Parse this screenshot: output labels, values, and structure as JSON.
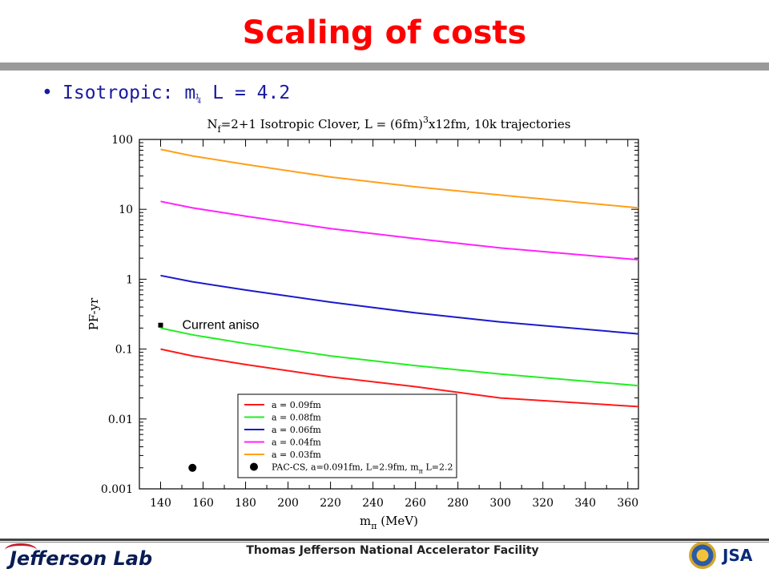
{
  "slide": {
    "title": "Scaling of costs",
    "bullet_prefix": "Isotropic: m",
    "bullet_sub": "¼",
    "bullet_suffix": " L = 4.2"
  },
  "footer": {
    "left_logo": "Jefferson Lab",
    "center_text": "Thomas Jefferson National Accelerator Facility",
    "right_logo": "JSA"
  },
  "colors": {
    "title": "#ff0000",
    "bullet": "#1a1aa0"
  },
  "chart_data": {
    "type": "line",
    "title_parts": [
      "N",
      "f",
      "=2+1 Isotropic Clover, L = (6fm)",
      "3",
      "x12fm, 10k trajectories"
    ],
    "xlabel_main": "m",
    "xlabel_sub": "π",
    "xlabel_unit": " (MeV)",
    "ylabel": "PF-yr",
    "xlim": [
      130,
      365
    ],
    "ylim": [
      0.001,
      100
    ],
    "yscale": "log",
    "x_ticks": [
      140,
      160,
      180,
      200,
      220,
      240,
      260,
      280,
      300,
      320,
      340,
      360
    ],
    "y_ticks": [
      0.001,
      0.01,
      0.1,
      1,
      10,
      100
    ],
    "y_tick_labels": [
      "0.001",
      "0.01",
      "0.1",
      "1",
      "10",
      "100"
    ],
    "x": [
      140,
      155,
      180,
      220,
      260,
      300,
      365
    ],
    "series": [
      {
        "name": "a = 0.09fm",
        "color": "#ff1a1a",
        "values": [
          0.1,
          0.08,
          0.06,
          0.04,
          0.029,
          0.02,
          0.015
        ]
      },
      {
        "name": "a = 0.08fm",
        "color": "#22ee22",
        "values": [
          0.2,
          0.16,
          0.12,
          0.08,
          0.058,
          0.044,
          0.03
        ]
      },
      {
        "name": "a = 0.06fm",
        "color": "#1a1acc",
        "values": [
          1.13,
          0.92,
          0.7,
          0.47,
          0.33,
          0.245,
          0.165
        ]
      },
      {
        "name": "a = 0.04fm",
        "color": "#ff22ff",
        "values": [
          13,
          10.5,
          8,
          5.3,
          3.8,
          2.8,
          1.9
        ]
      },
      {
        "name": "a = 0.03fm",
        "color": "#ff9f1a",
        "values": [
          72,
          58,
          44,
          29,
          21,
          16,
          10.5
        ]
      }
    ],
    "points": [
      {
        "name": "PAC-CS, a=0.091fm, L=2.9fm, m",
        "name_sub": "π",
        "name_tail": " L=2.2",
        "x": 155,
        "y": 0.002
      }
    ],
    "annotation": {
      "text": "Current aniso",
      "x": 140,
      "y": 0.22
    },
    "legend_position": "bottom-right"
  }
}
